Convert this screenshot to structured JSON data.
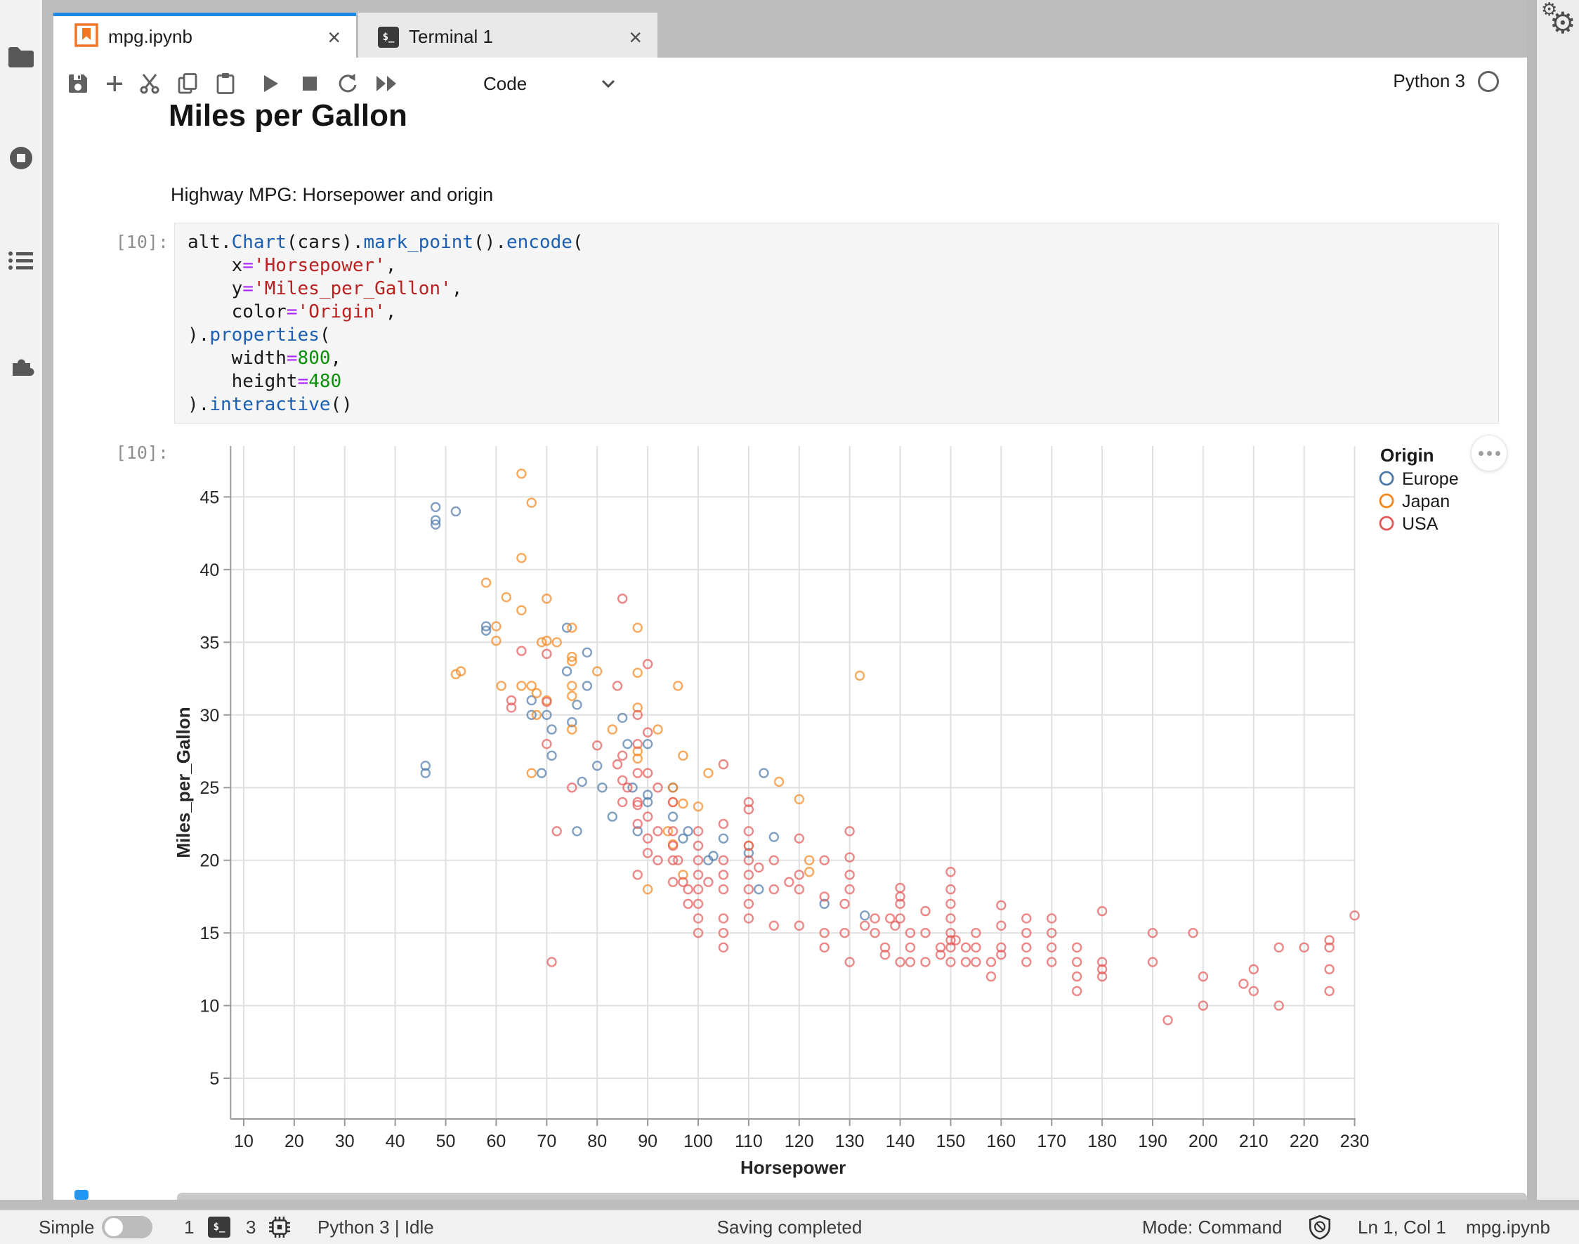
{
  "tabs": [
    {
      "label": "mpg.ipynb",
      "active": true
    },
    {
      "label": "Terminal 1",
      "active": false
    }
  ],
  "window": {
    "close_glyph": "×"
  },
  "sidebar": {
    "items": [
      "file-browser",
      "running-sessions",
      "table-of-contents",
      "extensions"
    ]
  },
  "toolbar": {
    "cell_type": "Code",
    "kernel_name": "Python 3"
  },
  "notebook": {
    "markdown": {
      "heading": "Miles per Gallon",
      "subtitle": "Highway MPG: Horsepower and origin"
    },
    "code_cell": {
      "prompt": "[10]:",
      "lines": [
        [
          [
            "p",
            "alt."
          ],
          [
            "f",
            "Chart"
          ],
          [
            "p",
            "(cars)."
          ],
          [
            "f",
            "mark_point"
          ],
          [
            "p",
            "()."
          ],
          [
            "f",
            "encode"
          ],
          [
            "p",
            "("
          ]
        ],
        [
          [
            "p",
            "    x"
          ],
          [
            "o",
            "="
          ],
          [
            "s",
            "'Horsepower'"
          ],
          [
            "p",
            ","
          ]
        ],
        [
          [
            "p",
            "    y"
          ],
          [
            "o",
            "="
          ],
          [
            "s",
            "'Miles_per_Gallon'"
          ],
          [
            "p",
            ","
          ]
        ],
        [
          [
            "p",
            "    color"
          ],
          [
            "o",
            "="
          ],
          [
            "s",
            "'Origin'"
          ],
          [
            "p",
            ","
          ]
        ],
        [
          [
            "p",
            ")."
          ],
          [
            "f",
            "properties"
          ],
          [
            "p",
            "("
          ]
        ],
        [
          [
            "p",
            "    width"
          ],
          [
            "o",
            "="
          ],
          [
            "n",
            "800"
          ],
          [
            "p",
            ","
          ]
        ],
        [
          [
            "p",
            "    height"
          ],
          [
            "o",
            "="
          ],
          [
            "n",
            "480"
          ]
        ],
        [
          [
            "p",
            ")."
          ],
          [
            "f",
            "interactive"
          ],
          [
            "p",
            "()"
          ]
        ]
      ]
    },
    "output_cell": {
      "prompt": "[10]:"
    }
  },
  "chart_data": {
    "type": "scatter",
    "title": "",
    "xlabel": "Horsepower",
    "ylabel": "Miles_per_Gallon",
    "xlim": [
      7.4,
      230.2
    ],
    "ylim": [
      2.2,
      48.5
    ],
    "xticks": [
      10,
      20,
      30,
      40,
      50,
      60,
      70,
      80,
      90,
      100,
      110,
      120,
      130,
      140,
      150,
      160,
      170,
      180,
      190,
      200,
      210,
      220,
      230
    ],
    "yticks": [
      5,
      10,
      15,
      20,
      25,
      30,
      35,
      40,
      45
    ],
    "grid": true,
    "legend": {
      "title": "Origin",
      "position": "top-right"
    },
    "series": [
      {
        "name": "Europe",
        "color": "#4c78a8",
        "points": [
          [
            46,
            26
          ],
          [
            46,
            26.5
          ],
          [
            48,
            43.1
          ],
          [
            48,
            44.3
          ],
          [
            48,
            43.4
          ],
          [
            52,
            44
          ],
          [
            58,
            36.1
          ],
          [
            58,
            35.8
          ],
          [
            67,
            30
          ],
          [
            67,
            31
          ],
          [
            69,
            26
          ],
          [
            70,
            30
          ],
          [
            71,
            27.2
          ],
          [
            71,
            29
          ],
          [
            74,
            33
          ],
          [
            74,
            36
          ],
          [
            75,
            29.5
          ],
          [
            76,
            22
          ],
          [
            76,
            30.7
          ],
          [
            77,
            25.4
          ],
          [
            78,
            34.3
          ],
          [
            78,
            32
          ],
          [
            80,
            26.5
          ],
          [
            81,
            25
          ],
          [
            83,
            23
          ],
          [
            85,
            29.8
          ],
          [
            86,
            28
          ],
          [
            87,
            25
          ],
          [
            88,
            22
          ],
          [
            90,
            24
          ],
          [
            90,
            28
          ],
          [
            90,
            24.5
          ],
          [
            95,
            25
          ],
          [
            95,
            23
          ],
          [
            97,
            21.5
          ],
          [
            98,
            22
          ],
          [
            102,
            20
          ],
          [
            103,
            20.3
          ],
          [
            105,
            21.5
          ],
          [
            110,
            20.5
          ],
          [
            112,
            18
          ],
          [
            113,
            26
          ],
          [
            115,
            21.6
          ],
          [
            125,
            17
          ],
          [
            133,
            16.2
          ]
        ]
      },
      {
        "name": "Japan",
        "color": "#f58518",
        "points": [
          [
            52,
            32.8
          ],
          [
            53,
            33
          ],
          [
            58,
            39.1
          ],
          [
            60,
            36.1
          ],
          [
            60,
            35.1
          ],
          [
            61,
            32
          ],
          [
            62,
            38.1
          ],
          [
            65,
            46.6
          ],
          [
            65,
            40.8
          ],
          [
            65,
            37.2
          ],
          [
            65,
            32
          ],
          [
            67,
            44.6
          ],
          [
            67,
            32
          ],
          [
            67,
            26
          ],
          [
            68,
            31.5
          ],
          [
            68,
            30
          ],
          [
            69,
            35
          ],
          [
            70,
            35.1
          ],
          [
            70,
            31
          ],
          [
            70,
            38
          ],
          [
            72,
            35
          ],
          [
            75,
            29
          ],
          [
            75,
            32
          ],
          [
            75,
            33.7
          ],
          [
            75,
            36
          ],
          [
            75,
            34
          ],
          [
            75,
            31.3
          ],
          [
            80,
            33
          ],
          [
            83,
            29
          ],
          [
            88,
            27
          ],
          [
            88,
            27.5
          ],
          [
            88,
            30.5
          ],
          [
            88,
            36
          ],
          [
            88,
            32.9
          ],
          [
            90,
            18
          ],
          [
            92,
            29
          ],
          [
            94,
            22
          ],
          [
            95,
            24
          ],
          [
            95,
            25
          ],
          [
            95,
            21.1
          ],
          [
            96,
            32
          ],
          [
            97,
            19
          ],
          [
            97,
            27.2
          ],
          [
            97,
            23.9
          ],
          [
            100,
            23.7
          ],
          [
            102,
            26
          ],
          [
            110,
            21
          ],
          [
            116,
            25.4
          ],
          [
            120,
            24.2
          ],
          [
            122,
            20
          ],
          [
            122,
            19.2
          ],
          [
            132,
            32.7
          ]
        ]
      },
      {
        "name": "USA",
        "color": "#e45756",
        "points": [
          [
            63,
            30.5
          ],
          [
            63,
            31
          ],
          [
            65,
            34.4
          ],
          [
            70,
            28
          ],
          [
            70,
            30.9
          ],
          [
            70,
            34.2
          ],
          [
            71,
            13
          ],
          [
            72,
            22
          ],
          [
            75,
            25
          ],
          [
            80,
            27.9
          ],
          [
            84,
            26.6
          ],
          [
            84,
            32
          ],
          [
            85,
            38
          ],
          [
            85,
            27.2
          ],
          [
            85,
            24
          ],
          [
            86,
            25
          ],
          [
            88,
            28
          ],
          [
            88,
            26
          ],
          [
            88,
            24
          ],
          [
            88,
            22.5
          ],
          [
            88,
            30
          ],
          [
            90,
            28.8
          ],
          [
            90,
            33.5
          ],
          [
            90,
            26
          ],
          [
            90,
            21.5
          ],
          [
            92,
            20
          ],
          [
            92,
            22
          ],
          [
            95,
            22
          ],
          [
            95,
            20
          ],
          [
            95,
            24
          ],
          [
            97,
            18.5
          ],
          [
            98,
            18
          ],
          [
            100,
            19
          ],
          [
            100,
            20
          ],
          [
            100,
            21
          ],
          [
            105,
            18
          ],
          [
            105,
            20
          ],
          [
            105,
            26.6
          ],
          [
            110,
            21
          ],
          [
            110,
            23.5
          ],
          [
            115,
            20
          ],
          [
            130,
            18
          ],
          [
            165,
            15
          ],
          [
            150,
            18
          ],
          [
            150,
            16
          ],
          [
            140,
            17
          ],
          [
            198,
            15
          ],
          [
            220,
            14
          ],
          [
            215,
            14
          ],
          [
            225,
            14
          ],
          [
            190,
            15
          ],
          [
            170,
            15
          ],
          [
            160,
            14
          ],
          [
            150,
            15
          ],
          [
            225,
            14.5
          ],
          [
            190,
            13
          ],
          [
            170,
            13
          ],
          [
            175,
            14
          ],
          [
            153,
            14
          ],
          [
            150,
            14
          ],
          [
            180,
            12
          ],
          [
            170,
            16
          ],
          [
            175,
            13
          ],
          [
            110,
            19
          ],
          [
            150,
            13
          ],
          [
            180,
            13
          ],
          [
            145,
            13
          ],
          [
            137,
            14
          ],
          [
            158,
            13
          ],
          [
            150,
            14.5
          ],
          [
            215,
            10
          ],
          [
            225,
            11
          ],
          [
            175,
            12
          ],
          [
            105,
            16
          ],
          [
            100,
            17
          ],
          [
            100,
            16
          ],
          [
            88,
            19
          ],
          [
            100,
            18
          ],
          [
            165,
            14
          ],
          [
            175,
            11
          ],
          [
            153,
            13
          ],
          [
            180,
            12.5
          ],
          [
            193,
            9
          ],
          [
            200,
            10
          ],
          [
            210,
            11
          ],
          [
            208,
            11.5
          ],
          [
            155,
            13
          ],
          [
            142,
            14
          ],
          [
            125,
            15
          ],
          [
            129,
            15
          ],
          [
            138,
            16
          ],
          [
            135,
            15
          ],
          [
            155,
            14
          ],
          [
            142,
            13
          ],
          [
            125,
            14
          ],
          [
            150,
            17
          ],
          [
            230,
            16.2
          ],
          [
            130,
            13
          ],
          [
            140,
            13
          ],
          [
            148,
            14
          ],
          [
            165,
            13
          ],
          [
            170,
            14
          ],
          [
            160,
            13.5
          ],
          [
            140,
            16
          ],
          [
            139,
            15.5
          ],
          [
            120,
            15.5
          ],
          [
            115,
            15.5
          ],
          [
            110,
            16
          ],
          [
            110,
            17
          ],
          [
            110,
            18
          ],
          [
            105,
            15
          ],
          [
            105,
            14
          ],
          [
            100,
            15
          ],
          [
            98,
            17
          ],
          [
            95,
            18.5
          ],
          [
            130,
            19
          ],
          [
            135,
            16
          ],
          [
            120,
            18
          ],
          [
            118,
            18.5
          ],
          [
            125,
            17.5
          ],
          [
            145,
            15
          ],
          [
            137,
            13.5
          ],
          [
            158,
            12
          ],
          [
            225,
            12.5
          ],
          [
            130,
            20.2
          ],
          [
            140,
            18.1
          ],
          [
            150,
            19.2
          ],
          [
            160,
            16.9
          ],
          [
            140,
            17.5
          ],
          [
            145,
            16.5
          ],
          [
            130,
            22
          ],
          [
            110,
            22
          ],
          [
            120,
            19
          ],
          [
            115,
            18
          ],
          [
            112,
            19.5
          ],
          [
            110,
            20
          ],
          [
            105,
            19
          ],
          [
            102,
            18.5
          ],
          [
            90,
            23
          ],
          [
            88,
            23.8
          ],
          [
            85,
            25.5
          ],
          [
            90,
            20.5
          ],
          [
            92,
            25
          ],
          [
            96,
            20
          ],
          [
            95,
            21
          ],
          [
            100,
            22
          ],
          [
            105,
            22.5
          ],
          [
            110,
            24
          ],
          [
            120,
            21.5
          ],
          [
            125,
            20
          ],
          [
            129,
            17
          ],
          [
            133,
            15.5
          ],
          [
            142,
            15
          ],
          [
            148,
            13.5
          ],
          [
            151,
            14.5
          ],
          [
            155,
            15
          ],
          [
            160,
            15.5
          ],
          [
            165,
            16
          ],
          [
            180,
            16.5
          ],
          [
            200,
            12
          ],
          [
            210,
            12.5
          ]
        ]
      }
    ]
  },
  "statusbar": {
    "simple_label": "Simple",
    "terminals": "1",
    "kernels": "3",
    "kernel_status": "Python 3 | Idle",
    "message": "Saving completed",
    "mode": "Mode: Command",
    "cursor": "Ln 1, Col 1",
    "filename": "mpg.ipynb"
  }
}
